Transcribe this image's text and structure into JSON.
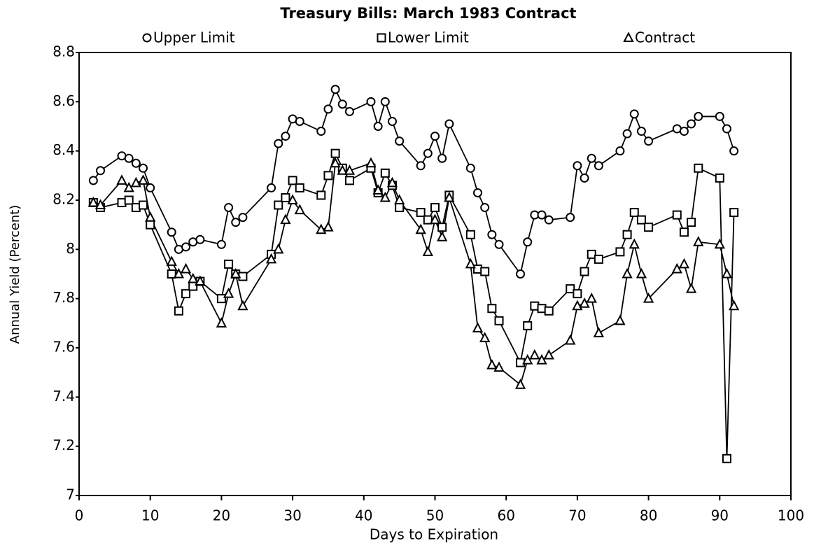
{
  "chart_data": {
    "type": "line",
    "title": "Treasury Bills: March 1983 Contract",
    "xlabel": "Days to Expiration",
    "ylabel": "Annual Yield (Percent)",
    "x": [
      2,
      3,
      6,
      7,
      8,
      9,
      10,
      13,
      14,
      15,
      16,
      17,
      20,
      21,
      22,
      23,
      27,
      28,
      29,
      30,
      31,
      34,
      35,
      36,
      37,
      38,
      41,
      42,
      43,
      44,
      45,
      48,
      49,
      50,
      51,
      52,
      55,
      56,
      57,
      58,
      59,
      62,
      63,
      64,
      65,
      66,
      69,
      70,
      71,
      72,
      73,
      76,
      77,
      78,
      79,
      80,
      84,
      85,
      86,
      87,
      90,
      91,
      92
    ],
    "series": [
      {
        "name": "Upper Limit",
        "color": "#000000",
        "marker": "circle",
        "values": [
          8.28,
          8.32,
          8.38,
          8.37,
          8.35,
          8.33,
          8.25,
          8.07,
          8.0,
          8.01,
          8.03,
          8.04,
          8.02,
          8.17,
          8.11,
          8.13,
          8.25,
          8.43,
          8.46,
          8.53,
          8.52,
          8.48,
          8.57,
          8.65,
          8.59,
          8.56,
          8.6,
          8.5,
          8.6,
          8.52,
          8.44,
          8.34,
          8.39,
          8.46,
          8.37,
          8.51,
          8.33,
          8.23,
          8.17,
          8.06,
          8.02,
          7.9,
          8.03,
          8.14,
          8.14,
          8.12,
          8.13,
          8.34,
          8.29,
          8.37,
          8.34,
          8.4,
          8.47,
          8.55,
          8.48,
          8.44,
          8.49,
          8.48,
          8.51,
          8.54,
          8.54,
          8.49,
          8.4
        ]
      },
      {
        "name": "Lower Limit",
        "color": "#000000",
        "marker": "square",
        "values": [
          8.19,
          8.17,
          8.19,
          8.2,
          8.17,
          8.18,
          8.1,
          7.9,
          7.75,
          7.82,
          7.85,
          7.87,
          7.8,
          7.94,
          7.9,
          7.89,
          7.98,
          8.18,
          8.21,
          8.28,
          8.25,
          8.22,
          8.3,
          8.39,
          8.33,
          8.28,
          8.33,
          8.23,
          8.31,
          8.26,
          8.17,
          8.15,
          8.12,
          8.17,
          8.09,
          8.22,
          8.06,
          7.92,
          7.91,
          7.76,
          7.71,
          7.54,
          7.69,
          7.77,
          7.76,
          7.75,
          7.84,
          7.82,
          7.91,
          7.98,
          7.96,
          7.99,
          8.06,
          8.15,
          8.12,
          8.09,
          8.14,
          8.07,
          8.11,
          8.33,
          8.29,
          7.15,
          8.15
        ]
      },
      {
        "name": "Contract",
        "color": "#000000",
        "marker": "triangle",
        "values": [
          8.19,
          8.18,
          8.28,
          8.25,
          8.27,
          8.28,
          8.13,
          7.95,
          7.9,
          7.92,
          7.88,
          7.87,
          7.7,
          7.82,
          7.9,
          7.77,
          7.96,
          8.0,
          8.12,
          8.2,
          8.16,
          8.08,
          8.09,
          8.35,
          8.32,
          8.32,
          8.35,
          8.24,
          8.21,
          8.27,
          8.2,
          8.08,
          7.99,
          8.12,
          8.05,
          8.21,
          7.94,
          7.68,
          7.64,
          7.53,
          7.52,
          7.45,
          7.55,
          7.57,
          7.55,
          7.57,
          7.63,
          7.77,
          7.78,
          7.8,
          7.66,
          7.71,
          7.9,
          8.02,
          7.9,
          7.8,
          7.92,
          7.94,
          7.84,
          8.03,
          8.02,
          7.9,
          7.77
        ]
      }
    ],
    "xlim": [
      0,
      100
    ],
    "xticks": [
      0,
      10,
      20,
      30,
      40,
      50,
      60,
      70,
      80,
      90,
      100
    ],
    "ylim": [
      7,
      8.8
    ],
    "yticks": [
      7,
      7.2,
      7.4,
      7.6,
      7.8,
      8,
      8.2,
      8.4,
      8.6,
      8.8
    ],
    "grid": false
  }
}
